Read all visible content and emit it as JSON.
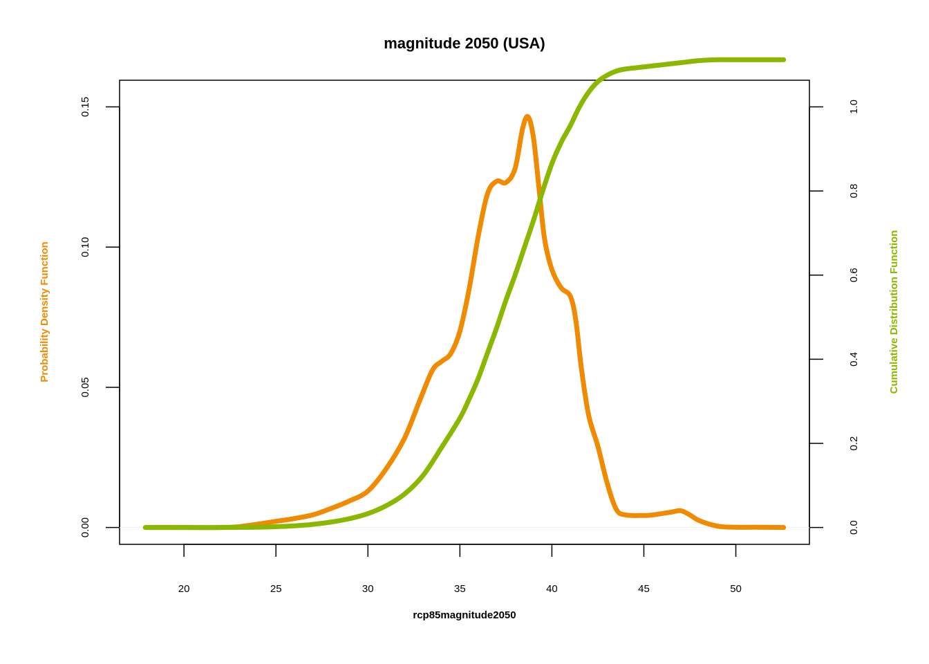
{
  "chart_data": {
    "type": "line",
    "title": "magnitude 2050 (USA)",
    "xlabel": "rcp85magnitude2050",
    "ylabel_left": "Probability Density Function",
    "ylabel_right": "Cumulative Distribution Function",
    "xlim": [
      16.5,
      54
    ],
    "ylim_left": [
      -0.006,
      0.1595
    ],
    "ylim_right": [
      -0.04,
      1.0633
    ],
    "x_ticks": [
      20,
      25,
      30,
      35,
      40,
      45,
      50
    ],
    "x_tick_labels": [
      "20",
      "25",
      "30",
      "35",
      "40",
      "45",
      "50"
    ],
    "y_left_ticks": [
      0.0,
      0.05,
      0.1,
      0.15
    ],
    "y_left_tick_labels": [
      "0.00",
      "0.05",
      "0.10",
      "0.15"
    ],
    "y_right_ticks": [
      0.0,
      0.2,
      0.4,
      0.6,
      0.8,
      1.0
    ],
    "y_right_tick_labels": [
      "0.0",
      "0.2",
      "0.4",
      "0.6",
      "0.8",
      "1.0"
    ],
    "colors": {
      "pdf": "#f08a00",
      "cdf": "#8ab800",
      "baseline": "#eeeeee"
    },
    "series": [
      {
        "axis": "left",
        "color": "#f08a00",
        "x": [
          17.9,
          20,
          22,
          23,
          24,
          25,
          26,
          27,
          28,
          29,
          30,
          31,
          32,
          32.8,
          33.5,
          34,
          34.5,
          35,
          35.5,
          36,
          36.5,
          37,
          37.5,
          38,
          38.4,
          38.7,
          39,
          39.3,
          39.6,
          40,
          40.5,
          41,
          41.3,
          41.6,
          42,
          42.5,
          43,
          43.5,
          44,
          45,
          45.5,
          46,
          46.5,
          47,
          47.5,
          48,
          49,
          50,
          51,
          52.6
        ],
        "y": [
          0.0,
          0.0,
          0.0,
          0.0003,
          0.0012,
          0.0022,
          0.0032,
          0.0045,
          0.0068,
          0.0095,
          0.013,
          0.021,
          0.032,
          0.045,
          0.056,
          0.0592,
          0.062,
          0.07,
          0.085,
          0.104,
          0.119,
          0.1235,
          0.123,
          0.128,
          0.142,
          0.1465,
          0.139,
          0.121,
          0.103,
          0.092,
          0.0855,
          0.0825,
          0.074,
          0.057,
          0.04,
          0.029,
          0.016,
          0.0065,
          0.0045,
          0.0043,
          0.0045,
          0.005,
          0.0055,
          0.006,
          0.0045,
          0.0025,
          0.0005,
          0.0001,
          0.0001,
          0.0
        ]
      },
      {
        "axis": "right",
        "color": "#8ab800",
        "x": [
          17.9,
          20,
          22,
          24,
          25,
          26,
          27,
          28,
          29,
          30,
          31,
          32,
          33,
          34,
          35,
          35.5,
          36,
          36.5,
          37,
          37.5,
          38,
          38.5,
          39,
          39.5,
          40,
          40.5,
          41,
          41.5,
          42,
          42.5,
          43,
          43.5,
          44,
          45,
          46,
          47,
          48,
          49,
          50,
          51,
          52.6
        ],
        "y": [
          0.0,
          0.0,
          0.0,
          0.0008,
          0.002,
          0.004,
          0.0075,
          0.013,
          0.021,
          0.033,
          0.052,
          0.08,
          0.124,
          0.19,
          0.26,
          0.305,
          0.355,
          0.415,
          0.475,
          0.54,
          0.6,
          0.665,
          0.73,
          0.8,
          0.865,
          0.915,
          0.955,
          1.0,
          1.035,
          1.06,
          1.075,
          1.085,
          1.09,
          1.095,
          1.1,
          1.105,
          1.11,
          1.112,
          1.112,
          1.112,
          1.112
        ]
      }
    ]
  }
}
